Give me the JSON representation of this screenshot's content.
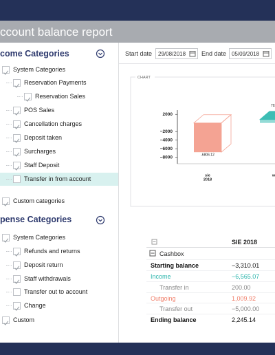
{
  "header": {
    "title": "ccount balance report"
  },
  "income": {
    "title": "come Categories",
    "tree": [
      {
        "label": "System Categories",
        "checked": true,
        "children": [
          {
            "label": "Reservation Payments",
            "checked": true,
            "children": [
              {
                "label": "Reservation Sales",
                "checked": true
              }
            ]
          },
          {
            "label": "POS Sales",
            "checked": true
          },
          {
            "label": "Cancellation charges",
            "checked": true
          },
          {
            "label": "Deposit taken",
            "checked": true
          },
          {
            "label": "Surcharges",
            "checked": true
          },
          {
            "label": "Staff Deposit",
            "checked": true
          },
          {
            "label": "Transfer in from account",
            "checked": false,
            "selected": true
          }
        ]
      },
      {
        "label": "Custom categories",
        "checked": true
      }
    ]
  },
  "expense": {
    "title": "pense Categories",
    "tree": [
      {
        "label": "System Categories",
        "checked": true,
        "children": [
          {
            "label": "Refunds and returns",
            "checked": true
          },
          {
            "label": "Deposit return",
            "checked": true
          },
          {
            "label": "Staff withdrawals",
            "checked": true
          },
          {
            "label": "Transfer out to account",
            "checked": false
          },
          {
            "label": "Change",
            "checked": true
          }
        ]
      },
      {
        "label": "Custom",
        "checked": true
      }
    ]
  },
  "filters": {
    "start_label": "Start date",
    "start_value": "29/08/2018",
    "end_label": "End date",
    "end_value": "05/09/2018"
  },
  "chart": {
    "label": "CHART",
    "categories": [
      [
        "sie",
        "2018"
      ],
      [
        "w"
      ]
    ],
    "values": [
      -6806.12,
      792
    ],
    "colors": [
      "#f4a393",
      "#3dbdb4"
    ],
    "ylim": [
      -9500,
      3000
    ],
    "yticks": [
      2000,
      {
        "value": -2000,
        "label": "−2000"
      },
      {
        "value": -4000,
        "label": "−4000"
      },
      {
        "value": -6000,
        "label": "−6000"
      },
      {
        "value": -8000,
        "label": "−8000"
      }
    ]
  },
  "table": {
    "column": "SIE 2018",
    "group": "Cashbox",
    "rows": [
      {
        "label": "Starting balance",
        "value": "−3,310.01",
        "tone": "total"
      },
      {
        "label": "Income",
        "value": "−6,565.07",
        "tone": "income"
      },
      {
        "label": "Transfer in",
        "value": "200.00",
        "tone": "sub"
      },
      {
        "label": "Outgoing",
        "value": "1,009.92",
        "tone": "outgoing"
      },
      {
        "label": "Transfer out",
        "value": "−5,000.00",
        "tone": "sub"
      },
      {
        "label": "Ending balance",
        "value": "2,245.14",
        "tone": "total"
      }
    ]
  }
}
